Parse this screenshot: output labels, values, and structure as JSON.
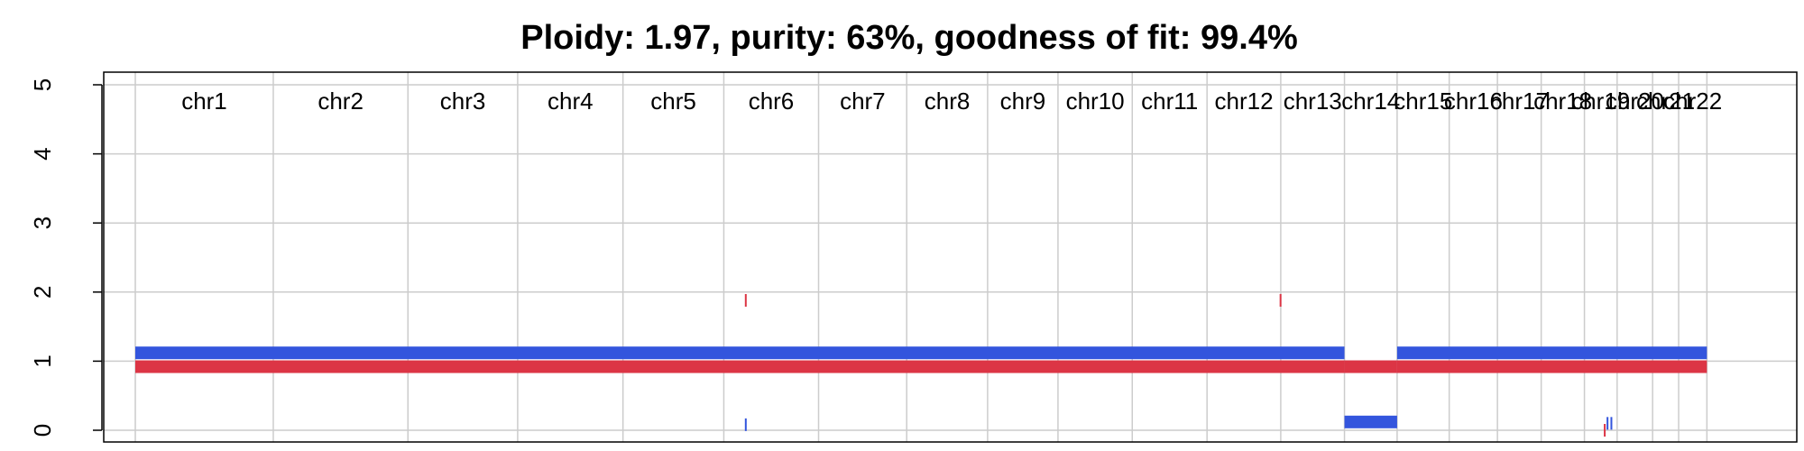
{
  "chart_data": {
    "type": "segment-plot",
    "title": "Ploidy: 1.97, purity: 63%, goodness of fit: 99.4%",
    "xlabel": "",
    "ylabel": "",
    "ylim": [
      0,
      5
    ],
    "yticks": [
      0,
      1,
      2,
      3,
      4,
      5
    ],
    "grid": true,
    "colors": {
      "major": "#dc3545",
      "minor": "#3355dd",
      "grid": "#cccccc",
      "axis": "#000000"
    },
    "genome_span_mb": [
      0,
      2881
    ],
    "chromosomes": [
      {
        "name": "chr1",
        "start": 0,
        "end": 249
      },
      {
        "name": "chr2",
        "start": 249,
        "end": 492
      },
      {
        "name": "chr3",
        "start": 492,
        "end": 690
      },
      {
        "name": "chr4",
        "start": 690,
        "end": 880
      },
      {
        "name": "chr5",
        "start": 880,
        "end": 1062
      },
      {
        "name": "chr6",
        "start": 1062,
        "end": 1233
      },
      {
        "name": "chr7",
        "start": 1233,
        "end": 1392
      },
      {
        "name": "chr8",
        "start": 1392,
        "end": 1538
      },
      {
        "name": "chr9",
        "start": 1538,
        "end": 1665
      },
      {
        "name": "chr10",
        "start": 1665,
        "end": 1799
      },
      {
        "name": "chr11",
        "start": 1799,
        "end": 1934
      },
      {
        "name": "chr12",
        "start": 1934,
        "end": 2067
      },
      {
        "name": "chr13",
        "start": 2067,
        "end": 2182
      },
      {
        "name": "chr14",
        "start": 2182,
        "end": 2277
      },
      {
        "name": "chr15",
        "start": 2277,
        "end": 2371
      },
      {
        "name": "chr16",
        "start": 2371,
        "end": 2458
      },
      {
        "name": "chr17",
        "start": 2458,
        "end": 2537
      },
      {
        "name": "chr18",
        "start": 2537,
        "end": 2615
      },
      {
        "name": "chr19",
        "start": 2615,
        "end": 2674
      },
      {
        "name": "chr20",
        "start": 2674,
        "end": 2738
      },
      {
        "name": "chr21",
        "start": 2738,
        "end": 2785
      },
      {
        "name": "chr22",
        "start": 2785,
        "end": 2836
      }
    ],
    "series": [
      {
        "name": "",
        "role": "major",
        "segments": [
          {
            "start": 0,
            "end": 2182,
            "cn": 0.92
          },
          {
            "start": 1100,
            "end": 1102,
            "cn": 1.88
          },
          {
            "start": 2065,
            "end": 2067,
            "cn": 1.88
          },
          {
            "start": 2182,
            "end": 2277,
            "cn": 0.92
          },
          {
            "start": 2277,
            "end": 2836,
            "cn": 0.92
          },
          {
            "start": 2650,
            "end": 2652,
            "cn": 0.0
          }
        ]
      },
      {
        "name": "",
        "role": "minor",
        "segments": [
          {
            "start": 0,
            "end": 2182,
            "cn": 1.12
          },
          {
            "start": 1100,
            "end": 1102,
            "cn": 0.08
          },
          {
            "start": 2182,
            "end": 2277,
            "cn": 0.12
          },
          {
            "start": 2277,
            "end": 2836,
            "cn": 1.12
          },
          {
            "start": 2655,
            "end": 2657,
            "cn": 0.1
          },
          {
            "start": 2662,
            "end": 2664,
            "cn": 0.1
          }
        ]
      }
    ]
  }
}
